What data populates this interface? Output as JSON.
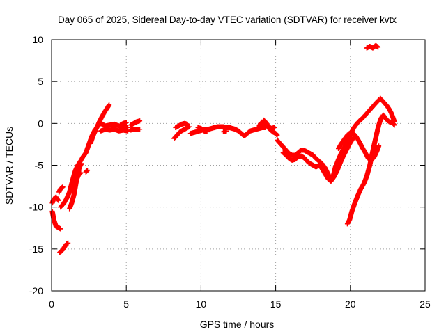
{
  "chart_data": {
    "type": "scatter",
    "title": "Day 065 of 2025, Sidereal Day-to-day VTEC variation (SDTVAR) for receiver kvtx",
    "xlabel": "GPS time / hours",
    "ylabel": "SDTVAR / TECUs",
    "xlim": [
      0,
      25
    ],
    "ylim": [
      -20,
      10
    ],
    "xticks": [
      0,
      5,
      10,
      15,
      20,
      25
    ],
    "yticks": [
      -20,
      -15,
      -10,
      -5,
      0,
      5,
      10
    ],
    "grid": true,
    "marker": "+",
    "color": "#ff0000",
    "series": [
      {
        "segments": [
          [
            [
              0.05,
              -10.5
            ],
            [
              0.15,
              -11.5
            ],
            [
              0.3,
              -12.3
            ],
            [
              0.5,
              -12.5
            ],
            [
              0.6,
              -12.6
            ]
          ],
          [
            [
              0.05,
              -9.5
            ],
            [
              0.15,
              -9.0
            ],
            [
              0.3,
              -8.8
            ],
            [
              0.45,
              -9.2
            ]
          ],
          [
            [
              0.5,
              -8.2
            ],
            [
              0.6,
              -7.8
            ],
            [
              0.75,
              -7.6
            ]
          ],
          [
            [
              0.55,
              -15.4
            ],
            [
              0.7,
              -15.2
            ],
            [
              0.85,
              -14.8
            ],
            [
              1.0,
              -14.4
            ],
            [
              1.1,
              -14.3
            ]
          ],
          [
            [
              0.6,
              -10.0
            ],
            [
              0.8,
              -9.6
            ],
            [
              1.0,
              -9.0
            ],
            [
              1.2,
              -8.2
            ],
            [
              1.3,
              -7.5
            ],
            [
              1.45,
              -6.5
            ],
            [
              1.6,
              -5.6
            ],
            [
              1.75,
              -5.0
            ],
            [
              1.9,
              -4.6
            ],
            [
              2.1,
              -4.0
            ],
            [
              2.3,
              -3.5
            ],
            [
              2.5,
              -2.5
            ],
            [
              2.7,
              -1.5
            ],
            [
              2.9,
              -0.8
            ],
            [
              3.1,
              -0.3
            ],
            [
              3.3,
              0.0
            ],
            [
              3.6,
              -0.3
            ],
            [
              3.9,
              -0.2
            ],
            [
              4.2,
              -0.1
            ],
            [
              4.5,
              -0.3
            ],
            [
              4.8,
              -0.4
            ],
            [
              5.1,
              -0.5
            ]
          ],
          [
            [
              1.2,
              -10.2
            ],
            [
              1.35,
              -9.5
            ],
            [
              1.5,
              -8.5
            ],
            [
              1.6,
              -7.5
            ],
            [
              1.7,
              -6.5
            ],
            [
              1.85,
              -5.3
            ],
            [
              2.0,
              -4.8
            ]
          ],
          [
            [
              1.5,
              -7.5
            ],
            [
              1.65,
              -6.8
            ],
            [
              1.8,
              -6.2
            ],
            [
              1.95,
              -5.9
            ]
          ],
          [
            [
              2.3,
              -5.8
            ],
            [
              2.4,
              -5.6
            ]
          ],
          [
            [
              2.6,
              -2.4
            ],
            [
              2.8,
              -1.4
            ],
            [
              3.0,
              -0.6
            ],
            [
              3.2,
              0.2
            ],
            [
              3.4,
              0.9
            ],
            [
              3.6,
              1.5
            ],
            [
              3.75,
              1.9
            ],
            [
              3.85,
              2.2
            ]
          ],
          [
            [
              3.3,
              -0.9
            ],
            [
              3.6,
              -0.7
            ],
            [
              3.9,
              -0.8
            ],
            [
              4.2,
              -0.7
            ],
            [
              4.5,
              -0.9
            ],
            [
              4.8,
              -0.8
            ],
            [
              5.1,
              -0.9
            ]
          ],
          [
            [
              4.6,
              -0.2
            ],
            [
              4.8,
              0.0
            ],
            [
              5.0,
              0.1
            ]
          ],
          [
            [
              5.3,
              -0.2
            ],
            [
              5.5,
              0.0
            ],
            [
              5.7,
              0.2
            ],
            [
              5.9,
              0.3
            ]
          ],
          [
            [
              5.3,
              -0.8
            ],
            [
              5.5,
              -0.7
            ],
            [
              5.7,
              -0.7
            ],
            [
              5.9,
              -0.7
            ]
          ],
          [
            [
              8.2,
              -1.8
            ],
            [
              8.4,
              -1.4
            ],
            [
              8.6,
              -1.0
            ],
            [
              8.8,
              -0.8
            ],
            [
              9.0,
              -0.6
            ],
            [
              9.2,
              -0.4
            ]
          ],
          [
            [
              8.3,
              -0.5
            ],
            [
              8.5,
              -0.3
            ],
            [
              8.7,
              -0.1
            ],
            [
              8.9,
              0.0
            ],
            [
              9.1,
              -0.1
            ]
          ],
          [
            [
              9.3,
              -1.2
            ],
            [
              9.5,
              -1.1
            ],
            [
              9.7,
              -1.0
            ],
            [
              9.9,
              -0.9
            ],
            [
              10.1,
              -0.8
            ],
            [
              10.3,
              -0.7
            ],
            [
              10.5,
              -0.7
            ],
            [
              10.7,
              -0.6
            ],
            [
              10.9,
              -0.5
            ],
            [
              11.1,
              -0.4
            ],
            [
              11.3,
              -0.4
            ],
            [
              11.5,
              -0.4
            ],
            [
              11.7,
              -0.5
            ],
            [
              11.9,
              -0.5
            ],
            [
              12.1,
              -0.6
            ],
            [
              12.3,
              -0.7
            ],
            [
              12.5,
              -0.9
            ],
            [
              12.7,
              -1.2
            ],
            [
              12.9,
              -1.5
            ],
            [
              13.1,
              -1.2
            ],
            [
              13.3,
              -0.9
            ],
            [
              13.5,
              -0.8
            ],
            [
              13.7,
              -0.7
            ],
            [
              13.9,
              -0.6
            ],
            [
              14.1,
              -0.5
            ],
            [
              14.3,
              -0.5
            ]
          ],
          [
            [
              9.8,
              -0.5
            ],
            [
              10.0,
              -0.6
            ],
            [
              10.2,
              -0.9
            ],
            [
              10.4,
              -1.0
            ]
          ],
          [
            [
              11.5,
              -1.0
            ],
            [
              11.7,
              -0.9
            ]
          ],
          [
            [
              13.9,
              -0.3
            ],
            [
              14.0,
              0.0
            ],
            [
              14.2,
              0.2
            ],
            [
              14.4,
              -0.2
            ],
            [
              14.6,
              -0.7
            ],
            [
              14.8,
              -1.0
            ],
            [
              15.0,
              -1.2
            ],
            [
              15.1,
              -1.4
            ]
          ],
          [
            [
              14.2,
              0.4
            ],
            [
              14.35,
              0.1
            ],
            [
              14.5,
              -0.3
            ],
            [
              14.7,
              -0.6
            ],
            [
              14.9,
              -0.5
            ]
          ],
          [
            [
              15.1,
              -2.0
            ],
            [
              15.3,
              -2.4
            ],
            [
              15.5,
              -2.8
            ],
            [
              15.7,
              -3.2
            ],
            [
              15.9,
              -3.6
            ],
            [
              16.1,
              -3.8
            ],
            [
              16.3,
              -3.8
            ],
            [
              16.5,
              -3.5
            ],
            [
              16.7,
              -3.2
            ],
            [
              16.9,
              -3.2
            ],
            [
              17.1,
              -3.4
            ],
            [
              17.3,
              -3.6
            ],
            [
              17.5,
              -3.8
            ],
            [
              17.7,
              -4.2
            ],
            [
              17.9,
              -4.5
            ],
            [
              18.1,
              -4.8
            ],
            [
              18.3,
              -5.3
            ],
            [
              18.5,
              -6.0
            ],
            [
              18.7,
              -6.8
            ],
            [
              18.85,
              -6.3
            ],
            [
              19.0,
              -5.2
            ],
            [
              19.2,
              -4.3
            ],
            [
              19.4,
              -3.5
            ],
            [
              19.6,
              -2.8
            ],
            [
              19.8,
              -2.2
            ],
            [
              20.0,
              -1.4
            ],
            [
              20.2,
              -0.6
            ],
            [
              20.4,
              -0.1
            ],
            [
              20.6,
              0.3
            ],
            [
              20.8,
              0.6
            ],
            [
              21.0,
              1.0
            ],
            [
              21.2,
              1.4
            ],
            [
              21.4,
              1.8
            ],
            [
              21.6,
              2.2
            ],
            [
              21.8,
              2.6
            ],
            [
              21.9,
              2.8
            ]
          ],
          [
            [
              15.5,
              -3.5
            ],
            [
              15.7,
              -3.8
            ],
            [
              15.9,
              -4.2
            ],
            [
              16.1,
              -4.4
            ],
            [
              16.3,
              -4.3
            ],
            [
              16.5,
              -4.0
            ],
            [
              16.7,
              -3.9
            ],
            [
              16.9,
              -4.1
            ],
            [
              17.1,
              -4.5
            ],
            [
              17.3,
              -4.8
            ],
            [
              17.5,
              -5.0
            ],
            [
              17.7,
              -5.2
            ],
            [
              17.9,
              -5.0
            ],
            [
              18.1,
              -5.4
            ],
            [
              18.3,
              -6.0
            ],
            [
              18.5,
              -6.6
            ],
            [
              18.7,
              -6.9
            ],
            [
              18.9,
              -6.4
            ],
            [
              19.1,
              -5.7
            ],
            [
              19.3,
              -4.8
            ],
            [
              19.5,
              -4.0
            ],
            [
              19.7,
              -3.3
            ],
            [
              19.9,
              -2.6
            ],
            [
              20.1,
              -2.0
            ],
            [
              20.3,
              -1.6
            ]
          ],
          [
            [
              19.2,
              -3.0
            ],
            [
              19.4,
              -2.4
            ],
            [
              19.6,
              -1.9
            ],
            [
              19.8,
              -1.4
            ],
            [
              20.0,
              -1.1
            ],
            [
              20.2,
              -1.2
            ],
            [
              20.4,
              -1.6
            ],
            [
              20.6,
              -2.2
            ],
            [
              20.8,
              -2.9
            ],
            [
              21.0,
              -3.5
            ],
            [
              21.2,
              -4.2
            ],
            [
              21.4,
              -4.4
            ],
            [
              21.6,
              -4.0
            ],
            [
              21.8,
              -3.2
            ],
            [
              21.9,
              -2.7
            ]
          ],
          [
            [
              19.8,
              -12.0
            ],
            [
              19.95,
              -11.5
            ],
            [
              20.1,
              -10.5
            ],
            [
              20.3,
              -9.5
            ],
            [
              20.5,
              -8.6
            ],
            [
              20.7,
              -7.8
            ],
            [
              20.9,
              -7.2
            ],
            [
              21.1,
              -6.3
            ],
            [
              21.3,
              -5.0
            ],
            [
              21.45,
              -3.7
            ],
            [
              21.6,
              -2.5
            ],
            [
              21.75,
              -1.3
            ],
            [
              21.9,
              -0.2
            ],
            [
              22.05,
              0.6
            ],
            [
              22.2,
              1.0
            ],
            [
              22.4,
              0.5
            ],
            [
              22.6,
              0.2
            ],
            [
              22.8,
              0.1
            ],
            [
              22.95,
              -0.2
            ]
          ],
          [
            [
              22.0,
              3.0
            ],
            [
              22.15,
              2.7
            ],
            [
              22.3,
              2.4
            ],
            [
              22.45,
              2.1
            ],
            [
              22.6,
              1.7
            ],
            [
              22.75,
              1.2
            ],
            [
              22.85,
              0.7
            ],
            [
              22.95,
              0.2
            ]
          ],
          [
            [
              21.1,
              9.0
            ],
            [
              21.3,
              9.2
            ],
            [
              21.5,
              9.0
            ],
            [
              21.7,
              9.3
            ],
            [
              21.85,
              9.1
            ]
          ]
        ]
      }
    ]
  }
}
